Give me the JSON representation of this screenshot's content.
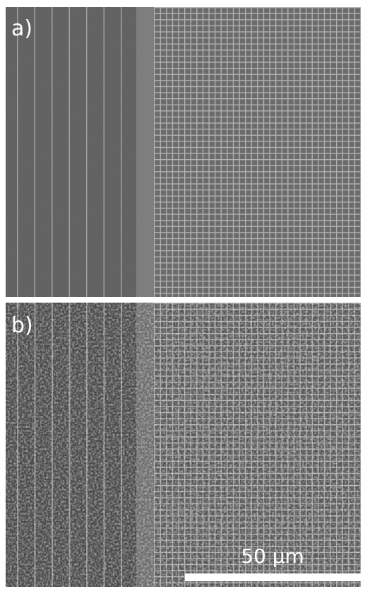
{
  "panels": [
    {
      "label": "a)"
    },
    {
      "label": "b)"
    }
  ],
  "scale_bar": {
    "label": "50 μm"
  }
}
